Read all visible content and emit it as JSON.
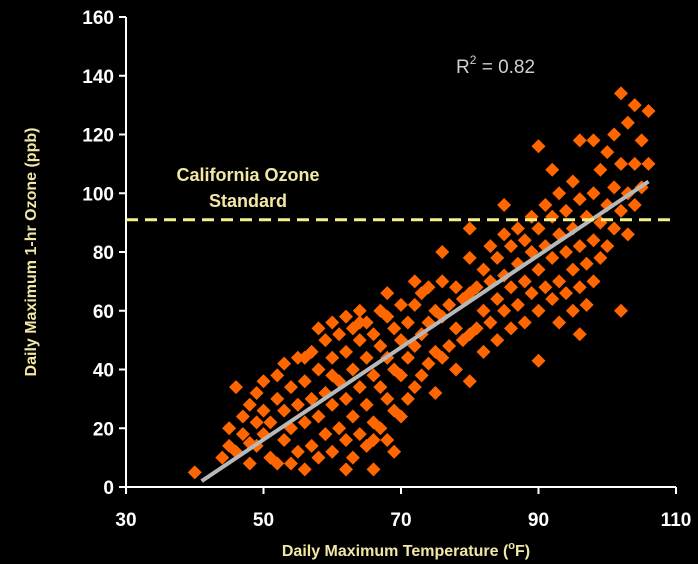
{
  "chart_data": {
    "type": "scatter",
    "xlabel": "Daily Maximum Temperature (",
    "xlabel_sup": "o",
    "xlabel_end": "F)",
    "ylabel": "Daily Maximum 1-hr Ozone (ppb)",
    "xlim": [
      30,
      110
    ],
    "ylim": [
      0,
      160
    ],
    "xticks": [
      "30",
      "50",
      "70",
      "90",
      "110"
    ],
    "yticks": [
      "0",
      "20",
      "40",
      "60",
      "80",
      "100",
      "120",
      "140",
      "160"
    ],
    "r2_label": {
      "prefix": "R",
      "sup": "2",
      "suffix": " = 0.82"
    },
    "standard": {
      "value": 91,
      "label_line1": "California Ozone",
      "label_line2": "Standard"
    },
    "trendline": {
      "x": [
        41,
        106
      ],
      "y": [
        2,
        104
      ]
    },
    "colors": {
      "points": "#ff6600",
      "trendline": "#b8b8b8",
      "standard_line": "#f6f08a",
      "axis": "#ffffff",
      "background": "#000000"
    },
    "points": [
      [
        40,
        5
      ],
      [
        44,
        10
      ],
      [
        45,
        14
      ],
      [
        45,
        20
      ],
      [
        46,
        12
      ],
      [
        47,
        18
      ],
      [
        47,
        24
      ],
      [
        48,
        8
      ],
      [
        48,
        15
      ],
      [
        49,
        22
      ],
      [
        46,
        34
      ],
      [
        48,
        28
      ],
      [
        49,
        32
      ],
      [
        50,
        18
      ],
      [
        50,
        26
      ],
      [
        50,
        36
      ],
      [
        51,
        10
      ],
      [
        51,
        22
      ],
      [
        52,
        30
      ],
      [
        52,
        38
      ],
      [
        53,
        16
      ],
      [
        53,
        26
      ],
      [
        53,
        42
      ],
      [
        54,
        8
      ],
      [
        54,
        20
      ],
      [
        54,
        34
      ],
      [
        55,
        12
      ],
      [
        55,
        28
      ],
      [
        55,
        44
      ],
      [
        56,
        6
      ],
      [
        56,
        22
      ],
      [
        56,
        36
      ],
      [
        57,
        14
      ],
      [
        57,
        30
      ],
      [
        57,
        46
      ],
      [
        58,
        10
      ],
      [
        58,
        24
      ],
      [
        58,
        40
      ],
      [
        59,
        18
      ],
      [
        59,
        32
      ],
      [
        59,
        50
      ],
      [
        60,
        12
      ],
      [
        60,
        28
      ],
      [
        60,
        44
      ],
      [
        60,
        56
      ],
      [
        61,
        20
      ],
      [
        61,
        36
      ],
      [
        61,
        52
      ],
      [
        62,
        16
      ],
      [
        62,
        30
      ],
      [
        62,
        46
      ],
      [
        62,
        58
      ],
      [
        63,
        10
      ],
      [
        63,
        24
      ],
      [
        63,
        40
      ],
      [
        63,
        54
      ],
      [
        64,
        18
      ],
      [
        64,
        34
      ],
      [
        64,
        50
      ],
      [
        64,
        60
      ],
      [
        65,
        14
      ],
      [
        65,
        28
      ],
      [
        65,
        44
      ],
      [
        65,
        56
      ],
      [
        66,
        6
      ],
      [
        66,
        22
      ],
      [
        66,
        38
      ],
      [
        66,
        52
      ],
      [
        67,
        20
      ],
      [
        67,
        34
      ],
      [
        67,
        48
      ],
      [
        67,
        60
      ],
      [
        68,
        16
      ],
      [
        68,
        30
      ],
      [
        68,
        44
      ],
      [
        68,
        58
      ],
      [
        69,
        12
      ],
      [
        69,
        26
      ],
      [
        69,
        40
      ],
      [
        69,
        54
      ],
      [
        70,
        24
      ],
      [
        70,
        38
      ],
      [
        70,
        50
      ],
      [
        70,
        62
      ],
      [
        71,
        30
      ],
      [
        71,
        44
      ],
      [
        71,
        56
      ],
      [
        72,
        34
      ],
      [
        72,
        48
      ],
      [
        72,
        62
      ],
      [
        73,
        38
      ],
      [
        73,
        52
      ],
      [
        73,
        66
      ],
      [
        74,
        42
      ],
      [
        74,
        56
      ],
      [
        74,
        68
      ],
      [
        75,
        32
      ],
      [
        75,
        46
      ],
      [
        75,
        60
      ],
      [
        76,
        44
      ],
      [
        76,
        58
      ],
      [
        76,
        70
      ],
      [
        77,
        48
      ],
      [
        77,
        62
      ],
      [
        78,
        40
      ],
      [
        78,
        54
      ],
      [
        78,
        68
      ],
      [
        79,
        50
      ],
      [
        79,
        64
      ],
      [
        80,
        36
      ],
      [
        80,
        52
      ],
      [
        80,
        66
      ],
      [
        80,
        78
      ],
      [
        81,
        54
      ],
      [
        81,
        68
      ],
      [
        82,
        46
      ],
      [
        82,
        60
      ],
      [
        82,
        74
      ],
      [
        83,
        56
      ],
      [
        83,
        70
      ],
      [
        83,
        82
      ],
      [
        84,
        50
      ],
      [
        84,
        64
      ],
      [
        84,
        78
      ],
      [
        85,
        60
      ],
      [
        85,
        72
      ],
      [
        85,
        86
      ],
      [
        86,
        54
      ],
      [
        86,
        68
      ],
      [
        86,
        82
      ],
      [
        87,
        62
      ],
      [
        87,
        76
      ],
      [
        87,
        88
      ],
      [
        88,
        56
      ],
      [
        88,
        70
      ],
      [
        88,
        84
      ],
      [
        89,
        66
      ],
      [
        89,
        80
      ],
      [
        89,
        92
      ],
      [
        90,
        43
      ],
      [
        90,
        60
      ],
      [
        90,
        74
      ],
      [
        90,
        88
      ],
      [
        91,
        68
      ],
      [
        91,
        82
      ],
      [
        91,
        96
      ],
      [
        92,
        64
      ],
      [
        92,
        78
      ],
      [
        92,
        92
      ],
      [
        92,
        108
      ],
      [
        93,
        56
      ],
      [
        93,
        70
      ],
      [
        93,
        86
      ],
      [
        93,
        100
      ],
      [
        94,
        66
      ],
      [
        94,
        80
      ],
      [
        94,
        94
      ],
      [
        95,
        60
      ],
      [
        95,
        74
      ],
      [
        95,
        88
      ],
      [
        95,
        104
      ],
      [
        96,
        52
      ],
      [
        96,
        68
      ],
      [
        96,
        82
      ],
      [
        96,
        98
      ],
      [
        96,
        118
      ],
      [
        97,
        62
      ],
      [
        97,
        76
      ],
      [
        97,
        92
      ],
      [
        98,
        70
      ],
      [
        98,
        84
      ],
      [
        98,
        100
      ],
      [
        99,
        78
      ],
      [
        99,
        90
      ],
      [
        99,
        108
      ],
      [
        100,
        82
      ],
      [
        100,
        96
      ],
      [
        100,
        114
      ],
      [
        101,
        88
      ],
      [
        101,
        102
      ],
      [
        101,
        120
      ],
      [
        102,
        60
      ],
      [
        102,
        94
      ],
      [
        102,
        110
      ],
      [
        102,
        134
      ],
      [
        103,
        86
      ],
      [
        103,
        100
      ],
      [
        103,
        124
      ],
      [
        104,
        96
      ],
      [
        104,
        110
      ],
      [
        104,
        130
      ],
      [
        105,
        102
      ],
      [
        105,
        118
      ],
      [
        106,
        110
      ],
      [
        106,
        128
      ],
      [
        98,
        118
      ],
      [
        90,
        116
      ],
      [
        85,
        96
      ],
      [
        80,
        88
      ],
      [
        76,
        80
      ],
      [
        72,
        70
      ],
      [
        68,
        66
      ],
      [
        64,
        56
      ],
      [
        60,
        38
      ],
      [
        56,
        44
      ],
      [
        52,
        8
      ],
      [
        49,
        14
      ],
      [
        62,
        6
      ],
      [
        66,
        16
      ],
      [
        58,
        54
      ]
    ]
  }
}
